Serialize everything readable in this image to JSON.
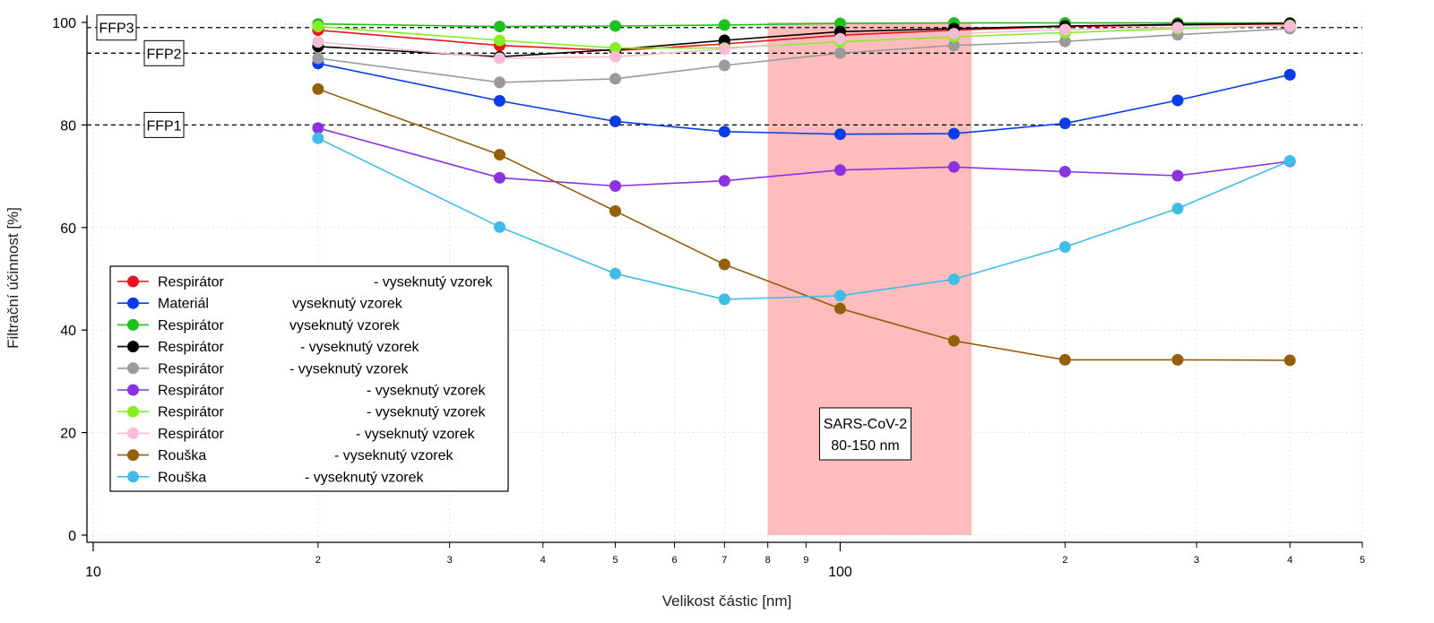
{
  "chart_data": {
    "type": "line",
    "xscale": "log",
    "xlabel": "Velikost částic [nm]",
    "ylabel": "Filtrační účinnost [%]",
    "xlim": [
      10,
      500
    ],
    "ylim": [
      0,
      100
    ],
    "grid": true,
    "legend_position": "left-middle",
    "x_major_ticks": [
      {
        "value": 10,
        "label": "10"
      },
      {
        "value": 100,
        "label": "100"
      }
    ],
    "x_minor_ticks": [
      {
        "value": 20,
        "label": "2"
      },
      {
        "value": 30,
        "label": "3"
      },
      {
        "value": 40,
        "label": "4"
      },
      {
        "value": 50,
        "label": "5"
      },
      {
        "value": 60,
        "label": "6"
      },
      {
        "value": 70,
        "label": "7"
      },
      {
        "value": 80,
        "label": "8"
      },
      {
        "value": 90,
        "label": "9"
      },
      {
        "value": 200,
        "label": "2"
      },
      {
        "value": 300,
        "label": "3"
      },
      {
        "value": 400,
        "label": "4"
      },
      {
        "value": 500,
        "label": "5"
      }
    ],
    "y_ticks": [
      0,
      20,
      40,
      60,
      80,
      100
    ],
    "x": [
      20,
      35,
      50,
      70,
      100,
      142,
      200,
      283,
      400
    ],
    "series": [
      {
        "name": "Respirátor",
        "suffix": "- vyseknutý vzorek",
        "color": "#e8141c",
        "values": [
          98.5,
          95.5,
          94.5,
          95.8,
          97.5,
          98.5,
          99.2,
          99.5,
          99.7
        ]
      },
      {
        "name": "Materiál",
        "suffix": "vyseknutý vzorek",
        "color": "#0a3ce6",
        "values": [
          92.0,
          84.7,
          80.7,
          78.7,
          78.2,
          78.3,
          80.3,
          84.8,
          89.8
        ]
      },
      {
        "name": "Respirátor",
        "suffix": "vyseknutý vzorek",
        "color": "#1ec21e",
        "values": [
          99.7,
          99.2,
          99.3,
          99.5,
          99.8,
          99.9,
          99.9,
          99.9,
          99.9
        ]
      },
      {
        "name": "Respirátor",
        "suffix": "- vyseknutý vzorek",
        "color": "#000000",
        "values": [
          95.3,
          93.3,
          94.7,
          96.5,
          98.2,
          98.8,
          99.3,
          99.6,
          99.8
        ]
      },
      {
        "name": "Respirátor",
        "suffix": "- vyseknutý vzorek",
        "color": "#9b9b9b",
        "values": [
          93.0,
          88.3,
          89.0,
          91.6,
          94.0,
          95.5,
          96.3,
          97.6,
          98.8
        ]
      },
      {
        "name": "Respirátor",
        "suffix": "- vyseknutý vzorek",
        "color": "#8a33e0",
        "values": [
          79.4,
          69.7,
          68.1,
          69.1,
          71.2,
          71.8,
          70.9,
          70.1,
          72.9
        ]
      },
      {
        "name": "Respirátor",
        "suffix": "- vyseknutý vzorek",
        "color": "#86ee22",
        "values": [
          99.2,
          96.5,
          95.0,
          95.0,
          96.2,
          97.2,
          98.0,
          98.8,
          99.4
        ]
      },
      {
        "name": "Respirátor",
        "suffix": "- vyseknutý vzorek",
        "color": "#f9bcd6",
        "values": [
          96.2,
          93.0,
          93.3,
          94.8,
          96.8,
          97.8,
          98.6,
          99.0,
          99.3
        ]
      },
      {
        "name": "Rouška",
        "suffix": "- vyseknutý vzorek",
        "color": "#94600c",
        "values": [
          87.0,
          74.2,
          63.2,
          52.8,
          44.2,
          37.9,
          34.2,
          34.2,
          34.1
        ]
      },
      {
        "name": "Rouška",
        "suffix": "- vyseknutý vzorek",
        "color": "#40bde6",
        "values": [
          77.4,
          60.1,
          51.0,
          46.0,
          46.7,
          49.9,
          56.2,
          63.7,
          73.0
        ]
      }
    ],
    "reference_lines": [
      {
        "label": "FFP3",
        "value": 99
      },
      {
        "label": "FFP2",
        "value": 94
      },
      {
        "label": "FFP1",
        "value": 80
      }
    ],
    "highlight_region": {
      "x_range": [
        80,
        150
      ],
      "color": "#ffbcbc",
      "label_lines": [
        "SARS-CoV-2",
        "80-150 nm"
      ]
    }
  }
}
